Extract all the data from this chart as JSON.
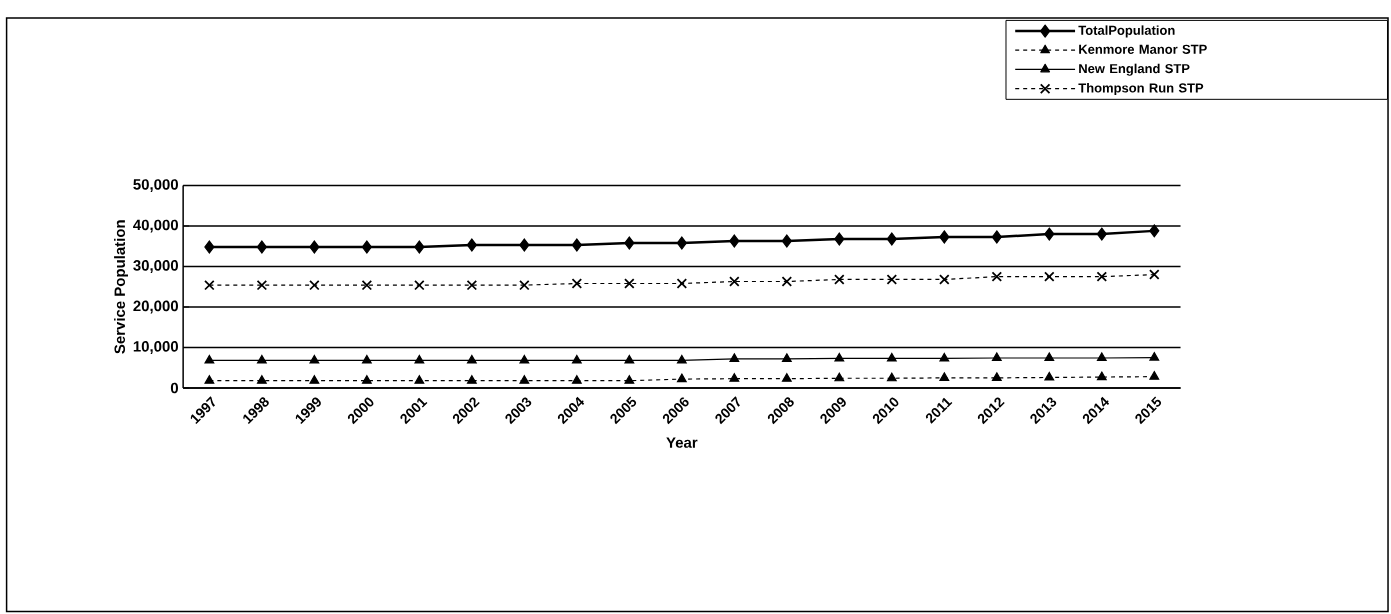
{
  "chart_data": {
    "type": "line",
    "xlabel": "Year",
    "ylabel": "Service Population",
    "categories": [
      "1997",
      "1998",
      "1999",
      "2000",
      "2001",
      "2002",
      "2003",
      "2004",
      "2005",
      "2006",
      "2007",
      "2008",
      "2009",
      "2010",
      "2011",
      "2012",
      "2013",
      "2014",
      "2015"
    ],
    "ylim": [
      0,
      50000
    ],
    "yticks": [
      0,
      {
        "value": 10000,
        "label": "10,000"
      },
      {
        "value": 20000,
        "label": "20,000"
      },
      {
        "value": 30000,
        "label": "30,000"
      },
      {
        "value": 40000,
        "label": "40,000"
      },
      {
        "value": 50000,
        "label": "50,000"
      }
    ],
    "grid": "y",
    "legend": "top right",
    "series": [
      {
        "name": "TotalPopulation",
        "color": "#000000",
        "marker": "diamond",
        "line_style": "solid",
        "values": [
          34800,
          34800,
          34800,
          34800,
          34800,
          35300,
          35300,
          35300,
          35800,
          35800,
          36300,
          36300,
          36800,
          36800,
          37300,
          37300,
          38000,
          38000,
          38800
        ]
      },
      {
        "name": "Kenmore Manor STP",
        "color": "#000000",
        "marker": "triangle",
        "line_style": "dashed",
        "values": [
          1800,
          1800,
          1800,
          1800,
          1800,
          1800,
          1800,
          1800,
          1800,
          2200,
          2300,
          2300,
          2400,
          2400,
          2500,
          2500,
          2600,
          2700,
          2800
        ]
      },
      {
        "name": "New England STP",
        "color": "#000000",
        "marker": "triangle",
        "line_style": "solid",
        "values": [
          6800,
          6800,
          6800,
          6800,
          6800,
          6800,
          6800,
          6800,
          6800,
          6800,
          7200,
          7200,
          7300,
          7300,
          7300,
          7400,
          7400,
          7400,
          7500
        ]
      },
      {
        "name": "Thompson Run STP",
        "color": "#000000",
        "marker": "cross",
        "line_style": "dashed",
        "values": [
          25400,
          25400,
          25400,
          25400,
          25400,
          25400,
          25400,
          25800,
          25800,
          25800,
          26300,
          26300,
          26800,
          26800,
          26800,
          27500,
          27500,
          27500,
          28000
        ]
      }
    ]
  }
}
